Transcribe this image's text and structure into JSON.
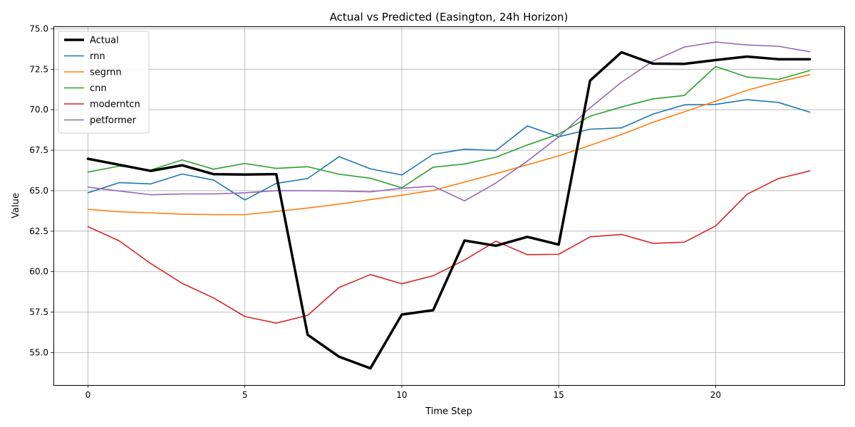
{
  "chart_data": {
    "type": "line",
    "title": "Actual vs Predicted (Easington, 24h Horizon)",
    "xlabel": "Time Step",
    "ylabel": "Value",
    "xlim": [
      -1.1,
      24.1
    ],
    "ylim": [
      53.0,
      75.15
    ],
    "xticks": [
      0,
      5,
      10,
      15,
      20
    ],
    "yticks": [
      55.0,
      57.5,
      60.0,
      62.5,
      65.0,
      67.5,
      70.0,
      72.5,
      75.0
    ],
    "xtick_labels": [
      "0",
      "5",
      "10",
      "15",
      "20"
    ],
    "ytick_labels": [
      "55.0",
      "57.5",
      "60.0",
      "62.5",
      "65.0",
      "67.5",
      "70.0",
      "72.5",
      "75.0"
    ],
    "grid": true,
    "legend_position": "top-left",
    "x": [
      0,
      1,
      2,
      3,
      4,
      5,
      6,
      7,
      8,
      9,
      10,
      11,
      12,
      13,
      14,
      15,
      16,
      17,
      18,
      19,
      20,
      21,
      22,
      23
    ],
    "series": [
      {
        "name": "Actual",
        "color": "#000000",
        "width": 3.5,
        "values": [
          66.97,
          66.6,
          66.22,
          66.57,
          66.02,
          66.0,
          66.02,
          56.1,
          54.75,
          54.03,
          57.35,
          57.62,
          61.92,
          61.6,
          62.15,
          61.67,
          71.8,
          73.55,
          72.85,
          72.83,
          73.07,
          73.28,
          73.12,
          73.12
        ]
      },
      {
        "name": "rnn",
        "color": "#1f77b4",
        "width": 1.6,
        "values": [
          64.87,
          65.5,
          65.42,
          66.03,
          65.66,
          64.43,
          65.45,
          65.75,
          67.1,
          66.35,
          65.97,
          67.25,
          67.56,
          67.48,
          69.0,
          68.33,
          68.8,
          68.88,
          69.73,
          70.3,
          70.33,
          70.62,
          70.45,
          69.85
        ]
      },
      {
        "name": "segrnn",
        "color": "#ff7f0e",
        "width": 1.6,
        "values": [
          63.85,
          63.7,
          63.63,
          63.55,
          63.52,
          63.52,
          63.72,
          63.93,
          64.17,
          64.45,
          64.72,
          65.02,
          65.53,
          66.05,
          66.6,
          67.15,
          67.8,
          68.47,
          69.22,
          69.87,
          70.53,
          71.2,
          71.72,
          72.17
        ]
      },
      {
        "name": "cnn",
        "color": "#2ca02c",
        "width": 1.6,
        "values": [
          66.15,
          66.52,
          66.28,
          66.9,
          66.33,
          66.68,
          66.38,
          66.48,
          66.02,
          65.77,
          65.18,
          66.45,
          66.65,
          67.07,
          67.82,
          68.5,
          69.6,
          70.17,
          70.67,
          70.88,
          72.67,
          72.02,
          71.87,
          72.42
        ]
      },
      {
        "name": "moderntcn",
        "color": "#d62728",
        "width": 1.6,
        "values": [
          62.78,
          61.9,
          60.5,
          59.28,
          58.38,
          57.23,
          56.82,
          57.3,
          59.02,
          59.82,
          59.25,
          59.75,
          60.72,
          61.88,
          61.05,
          61.07,
          62.15,
          62.3,
          61.75,
          61.82,
          62.82,
          64.78,
          65.75,
          66.22
        ]
      },
      {
        "name": "petformer",
        "color": "#9467bd",
        "width": 1.6,
        "values": [
          65.22,
          64.98,
          64.75,
          64.8,
          64.8,
          64.87,
          65.0,
          65.0,
          64.98,
          64.93,
          65.15,
          65.28,
          64.37,
          65.48,
          66.83,
          68.32,
          70.12,
          71.7,
          73.0,
          73.87,
          74.18,
          74.0,
          73.92,
          73.58
        ]
      }
    ]
  }
}
